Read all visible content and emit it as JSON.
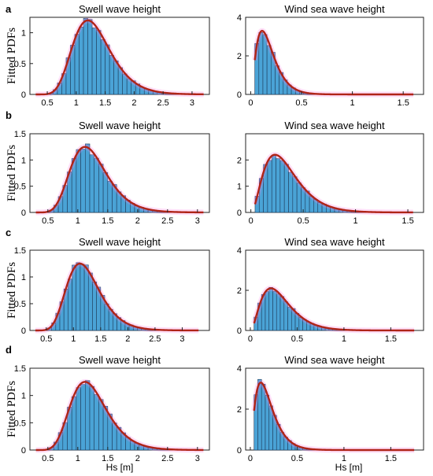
{
  "chart_data": [
    {
      "panel": "a",
      "type": "bar",
      "title": "Swell wave height",
      "ylabel": "Fitted PDFs",
      "xlabel": "",
      "xlim": [
        0.2,
        3.3
      ],
      "ylim": [
        0,
        1.25
      ],
      "xticks": [
        0.5,
        1,
        1.5,
        2,
        2.5,
        3
      ],
      "yticks": [
        0,
        0.5,
        1
      ],
      "xtick_labels": [
        "0.5",
        "1",
        "1.5",
        "2",
        "2.5",
        "3"
      ],
      "ytick_labels": [
        "0",
        "0.5",
        "1"
      ],
      "dist": {
        "kind": "lognormal",
        "mode": 1.2,
        "sigma": 0.27,
        "peak": 1.2,
        "x0": 0.3,
        "x1": 3.2,
        "bin": 0.075
      }
    },
    {
      "panel": "a",
      "type": "bar",
      "title": "Wind sea wave height",
      "ylabel": "",
      "xlabel": "",
      "xlim": [
        -0.05,
        1.7
      ],
      "ylim": [
        0,
        4
      ],
      "xticks": [
        0,
        0.5,
        1,
        1.5
      ],
      "yticks": [
        0,
        2,
        4
      ],
      "xtick_labels": [
        "0",
        "0.5",
        "1",
        "1.5"
      ],
      "ytick_labels": [
        "0",
        "2",
        "4"
      ],
      "dist": {
        "kind": "gamma",
        "k": 2.6,
        "theta": 0.07,
        "x0": 0.04,
        "x1": 1.6,
        "peak": 3.3,
        "bin": 0.04
      }
    },
    {
      "panel": "b",
      "type": "bar",
      "title": "Swell wave height",
      "ylabel": "Fitted PDFs",
      "xlabel": "",
      "xlim": [
        0.2,
        3.2
      ],
      "ylim": [
        0,
        1.5
      ],
      "xticks": [
        0.5,
        1,
        1.5,
        2,
        2.5,
        3
      ],
      "yticks": [
        0,
        0.5,
        1,
        1.5
      ],
      "xtick_labels": [
        "0.5",
        "1",
        "1.5",
        "2",
        "2.5",
        "3"
      ],
      "ytick_labels": [
        "0",
        "0.5",
        "1",
        "1.5"
      ],
      "dist": {
        "kind": "lognormal",
        "mode": 1.12,
        "sigma": 0.27,
        "peak": 1.25,
        "x0": 0.3,
        "x1": 3.1,
        "bin": 0.075
      }
    },
    {
      "panel": "b",
      "type": "bar",
      "title": "Wind sea wave height",
      "ylabel": "",
      "xlabel": "",
      "xlim": [
        -0.05,
        1.65
      ],
      "ylim": [
        0,
        3
      ],
      "xticks": [
        0,
        0.5,
        1,
        1.5
      ],
      "yticks": [
        0,
        1,
        2
      ],
      "xtick_labels": [
        "0",
        "0.5",
        "1",
        "1.5"
      ],
      "ytick_labels": [
        "0",
        "1",
        "2"
      ],
      "dist": {
        "kind": "gamma",
        "k": 3.1,
        "theta": 0.11,
        "x0": 0.04,
        "x1": 1.55,
        "peak": 2.2,
        "bin": 0.04
      }
    },
    {
      "panel": "c",
      "type": "bar",
      "title": "Swell wave height",
      "ylabel": "Fitted PDFs",
      "xlabel": "",
      "xlim": [
        0.2,
        3.5
      ],
      "ylim": [
        0,
        1.5
      ],
      "xticks": [
        0.5,
        1,
        1.5,
        2,
        2.5,
        3
      ],
      "yticks": [
        0,
        0.5,
        1,
        1.5
      ],
      "xtick_labels": [
        "0.5",
        "1",
        "1.5",
        "2",
        "2.5",
        "3"
      ],
      "ytick_labels": [
        "0",
        "0.5",
        "1",
        "1.5"
      ],
      "dist": {
        "kind": "lognormal",
        "mode": 1.12,
        "sigma": 0.27,
        "peak": 1.25,
        "x0": 0.3,
        "x1": 3.3,
        "bin": 0.075
      }
    },
    {
      "panel": "c",
      "type": "bar",
      "title": "Wind sea wave height",
      "ylabel": "",
      "xlabel": "",
      "xlim": [
        -0.05,
        1.85
      ],
      "ylim": [
        0,
        4
      ],
      "xticks": [
        0,
        0.5,
        1,
        1.5
      ],
      "yticks": [
        0,
        2,
        4
      ],
      "xtick_labels": [
        "0",
        "0.5",
        "1",
        "1.5"
      ],
      "ytick_labels": [
        "0",
        "2",
        "4"
      ],
      "dist": {
        "kind": "gamma",
        "k": 3.0,
        "theta": 0.11,
        "x0": 0.04,
        "x1": 1.75,
        "peak": 2.1,
        "bin": 0.04
      }
    },
    {
      "panel": "d",
      "type": "bar",
      "title": "Swell wave height",
      "ylabel": "Fitted PDFs",
      "xlabel": "Hs [m]",
      "xlim": [
        0.2,
        3.2
      ],
      "ylim": [
        0,
        1.5
      ],
      "xticks": [
        0.5,
        1,
        1.5,
        2,
        2.5,
        3
      ],
      "yticks": [
        0,
        0.5,
        1,
        1.5
      ],
      "xtick_labels": [
        "0.5",
        "1",
        "1.5",
        "2",
        "2.5",
        "3"
      ],
      "ytick_labels": [
        "0",
        "0.5",
        "1",
        "1.5"
      ],
      "dist": {
        "kind": "lognormal",
        "mode": 1.12,
        "sigma": 0.27,
        "peak": 1.25,
        "x0": 0.3,
        "x1": 3.1,
        "bin": 0.075
      }
    },
    {
      "panel": "d",
      "type": "bar",
      "title": "Wind sea wave height",
      "ylabel": "",
      "xlabel": "Hs [m]",
      "xlim": [
        -0.05,
        1.85
      ],
      "ylim": [
        0,
        4
      ],
      "xticks": [
        0,
        0.5,
        1,
        1.5
      ],
      "yticks": [
        0,
        2,
        4
      ],
      "xtick_labels": [
        "0",
        "0.5",
        "1",
        "1.5"
      ],
      "ytick_labels": [
        "0",
        "2",
        "4"
      ],
      "dist": {
        "kind": "gamma",
        "k": 2.4,
        "theta": 0.08,
        "x0": 0.04,
        "x1": 1.75,
        "peak": 3.3,
        "bin": 0.04
      }
    }
  ],
  "style": {
    "bar_color": "#4aa3d6",
    "bar_edge": "#1f3d5c",
    "curve_color": "#b02418",
    "glow_color": "#ff7ce0"
  }
}
